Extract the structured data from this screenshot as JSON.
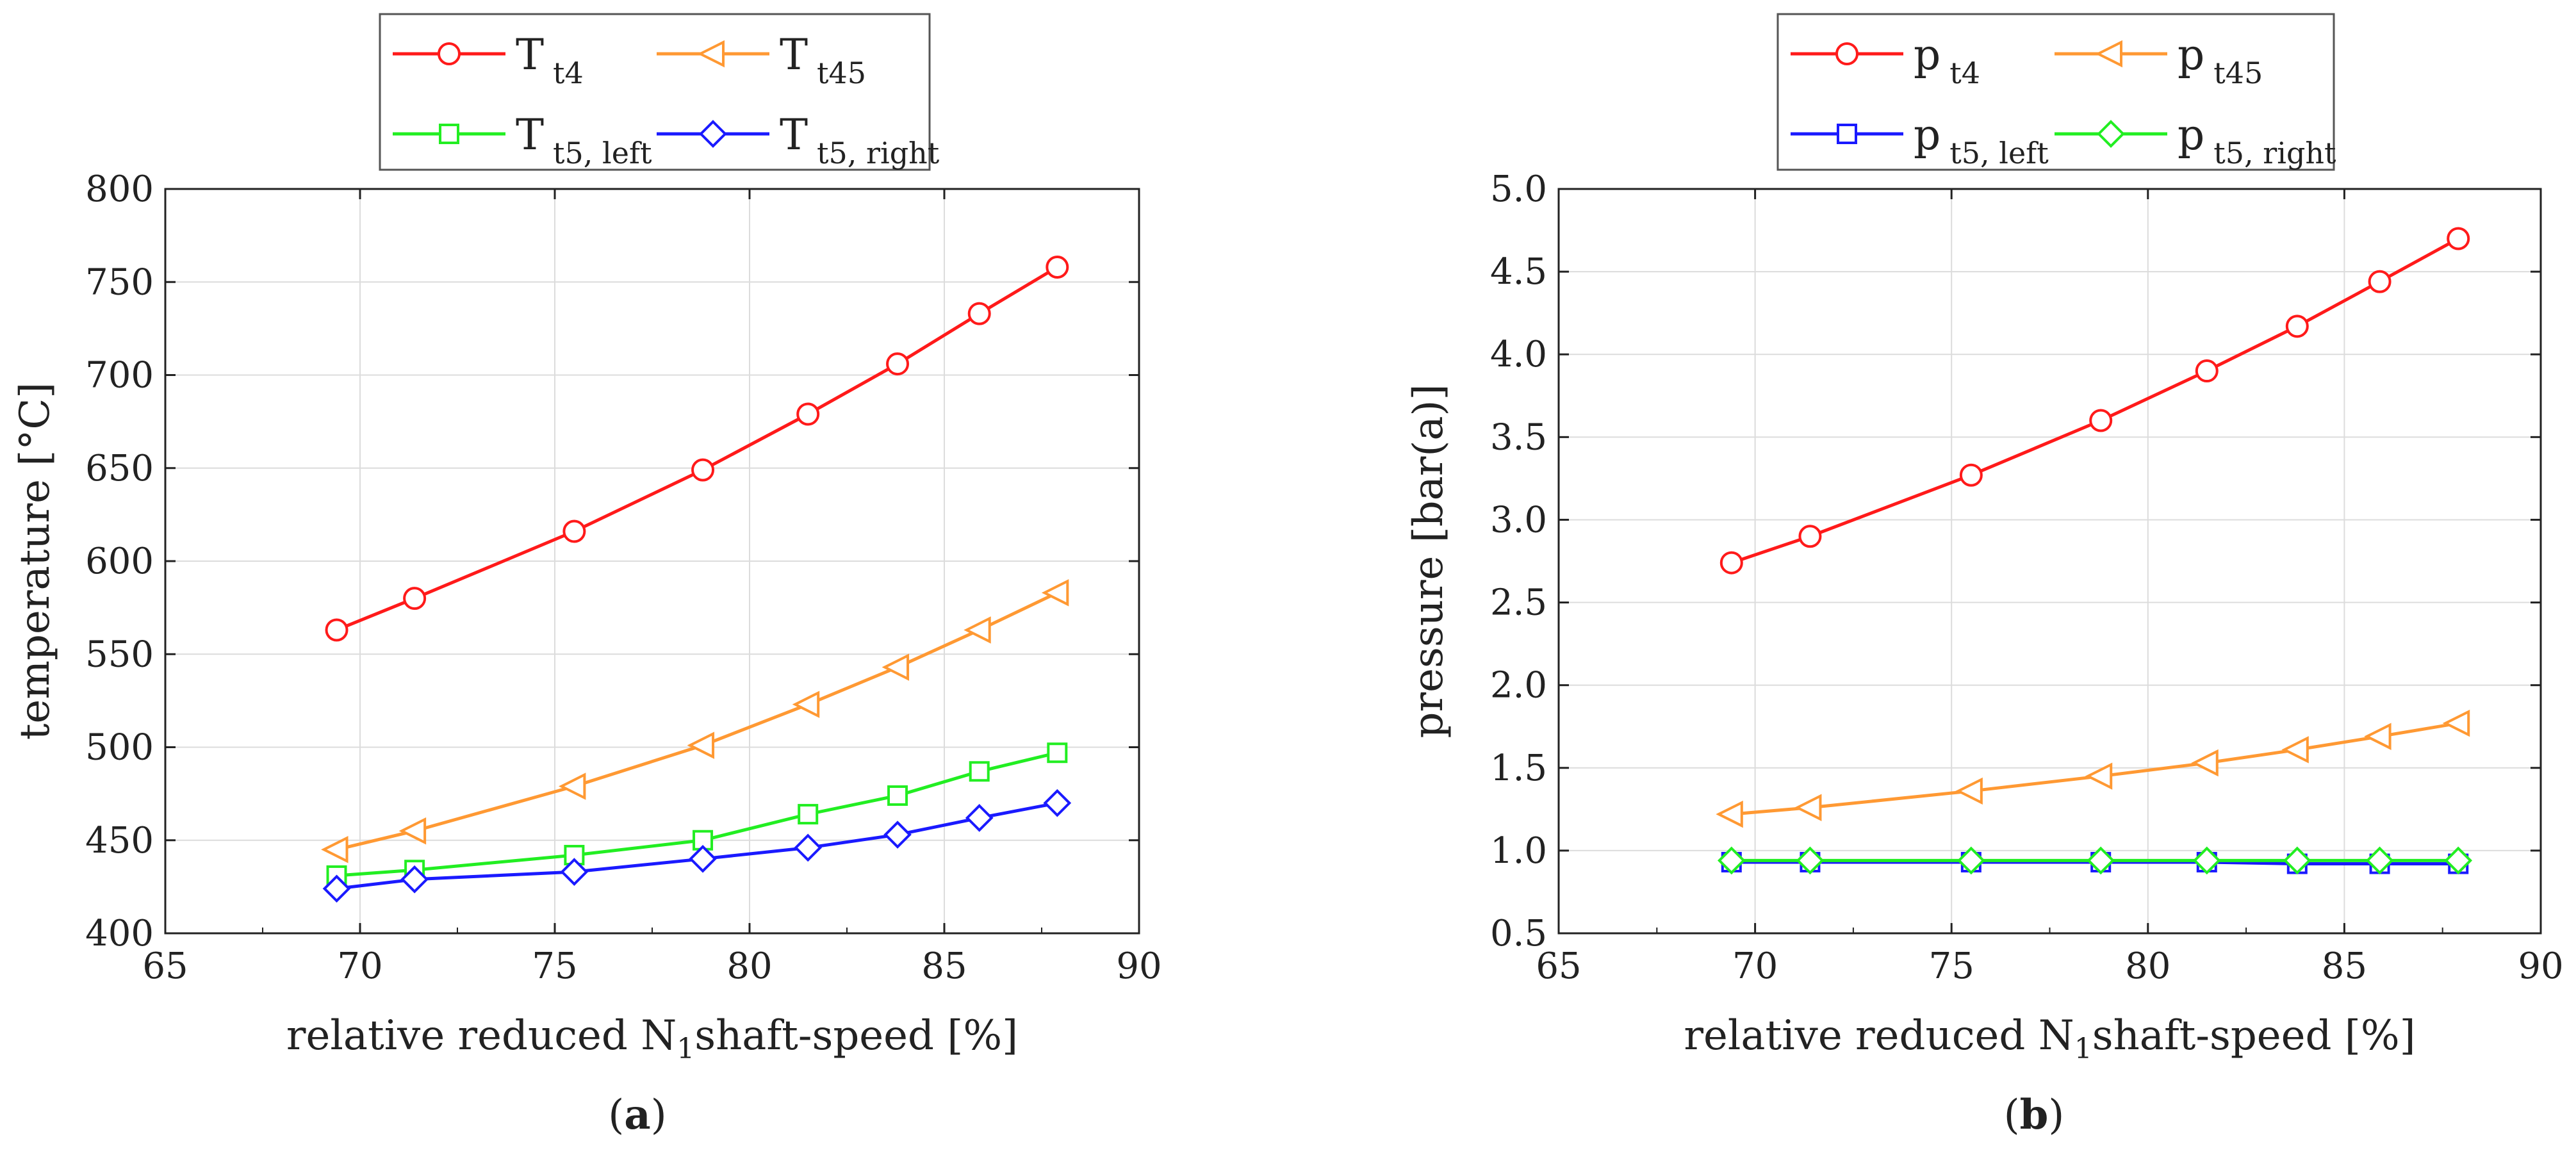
{
  "chart_data": [
    {
      "type": "line",
      "panel_label": "a",
      "xlabel_pre": "relative reduced N",
      "xlabel_sub": "1",
      "xlabel_post": "shaft-speed [%]",
      "ylabel": "temperature [°C]",
      "xlim": [
        65,
        90
      ],
      "ylim": [
        400,
        800
      ],
      "xticks": [
        65,
        70,
        75,
        80,
        85,
        90
      ],
      "yticks": [
        400,
        450,
        500,
        550,
        600,
        650,
        700,
        750,
        800
      ],
      "ytick_decimals": 0,
      "grid": true,
      "legend_position": "top",
      "x": [
        69.4,
        71.4,
        75.5,
        78.8,
        81.5,
        83.8,
        85.9,
        87.9
      ],
      "series": [
        {
          "name": "T",
          "sub": "t4",
          "color": "#ff1a1a",
          "marker": "circle",
          "values": [
            563,
            580,
            616,
            649,
            679,
            706,
            733,
            758
          ]
        },
        {
          "name": "T",
          "sub": "t45",
          "color": "#ff9933",
          "marker": "triangle-left",
          "values": [
            445,
            455,
            479,
            501,
            523,
            543,
            563,
            583
          ]
        },
        {
          "name": "T",
          "sub": "t5, left",
          "color": "#22ee22",
          "marker": "square",
          "values": [
            431,
            434,
            442,
            450,
            464,
            474,
            487,
            497
          ]
        },
        {
          "name": "T",
          "sub": "t5, right",
          "color": "#1a1aff",
          "marker": "diamond",
          "values": [
            424,
            429,
            433,
            440,
            446,
            453,
            462,
            470
          ]
        }
      ]
    },
    {
      "type": "line",
      "panel_label": "b",
      "xlabel_pre": "relative reduced N",
      "xlabel_sub": "1",
      "xlabel_post": "shaft-speed [%]",
      "ylabel": "pressure [bar(a)]",
      "xlim": [
        65,
        90
      ],
      "ylim": [
        0.5,
        5.0
      ],
      "xticks": [
        65,
        70,
        75,
        80,
        85,
        90
      ],
      "yticks": [
        0.5,
        1.0,
        1.5,
        2.0,
        2.5,
        3.0,
        3.5,
        4.0,
        4.5,
        5.0
      ],
      "ytick_decimals": 1,
      "grid": true,
      "legend_position": "top",
      "x": [
        69.4,
        71.4,
        75.5,
        78.8,
        81.5,
        83.8,
        85.9,
        87.9
      ],
      "series": [
        {
          "name": "p",
          "sub": "t4",
          "color": "#ff1a1a",
          "marker": "circle",
          "values": [
            2.74,
            2.9,
            3.27,
            3.6,
            3.9,
            4.17,
            4.44,
            4.7
          ]
        },
        {
          "name": "p",
          "sub": "t45",
          "color": "#ff9933",
          "marker": "triangle-left",
          "values": [
            1.22,
            1.26,
            1.36,
            1.45,
            1.53,
            1.61,
            1.69,
            1.77
          ]
        },
        {
          "name": "p",
          "sub": "t5, left",
          "color": "#1a1aff",
          "marker": "square",
          "values": [
            0.93,
            0.93,
            0.93,
            0.93,
            0.93,
            0.92,
            0.92,
            0.92
          ]
        },
        {
          "name": "p",
          "sub": "t5, right",
          "color": "#22ee22",
          "marker": "diamond",
          "values": [
            0.94,
            0.94,
            0.94,
            0.94,
            0.94,
            0.94,
            0.94,
            0.94
          ]
        }
      ]
    }
  ]
}
